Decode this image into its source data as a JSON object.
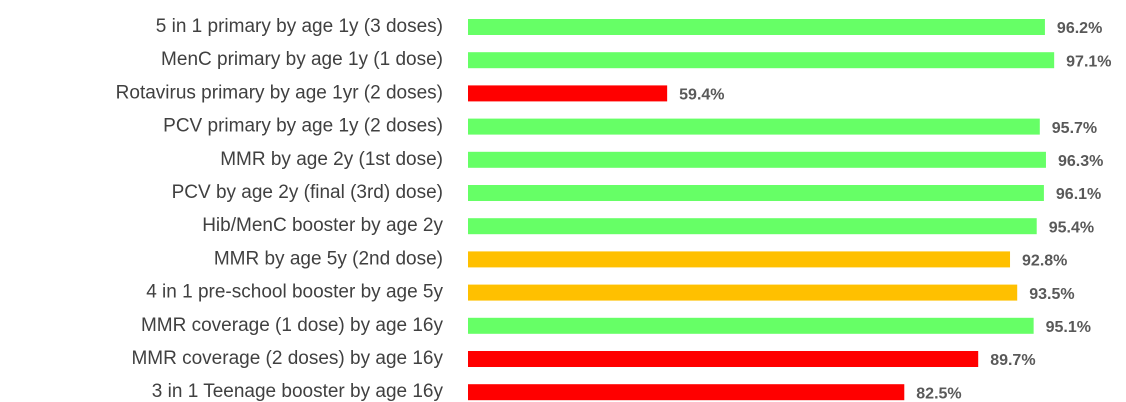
{
  "chart_data": {
    "type": "barh",
    "categories": [
      "5 in 1 primary by age 1y (3 doses)",
      "MenC primary by age 1y (1 dose)",
      "Rotavirus primary by age 1yr (2 doses)",
      "PCV primary by age 1y (2 doses)",
      "MMR by age 2y (1st dose)",
      "PCV by age 2y (final (3rd) dose)",
      "Hib/MenC booster by age 2y",
      "MMR by age 5y (2nd dose)",
      "4 in 1 pre-school booster by age 5y",
      "MMR coverage (1 dose) by age 16y",
      "MMR coverage (2 doses) by age 16y",
      "3 in 1 Teenage booster by age 16y"
    ],
    "values": [
      96.2,
      97.1,
      59.4,
      95.7,
      96.3,
      96.1,
      95.4,
      92.8,
      93.5,
      95.1,
      89.7,
      82.5
    ],
    "value_labels": [
      "96.2%",
      "97.1%",
      "59.4%",
      "95.7%",
      "96.3%",
      "96.1%",
      "95.4%",
      "92.8%",
      "93.5%",
      "95.1%",
      "89.7%",
      "82.5%"
    ],
    "colors": [
      "#66ff66",
      "#66ff66",
      "#ff0000",
      "#66ff66",
      "#66ff66",
      "#66ff66",
      "#66ff66",
      "#ffc000",
      "#ffc000",
      "#66ff66",
      "#ff0000",
      "#ff0000"
    ],
    "xlim": [
      40,
      104
    ]
  }
}
